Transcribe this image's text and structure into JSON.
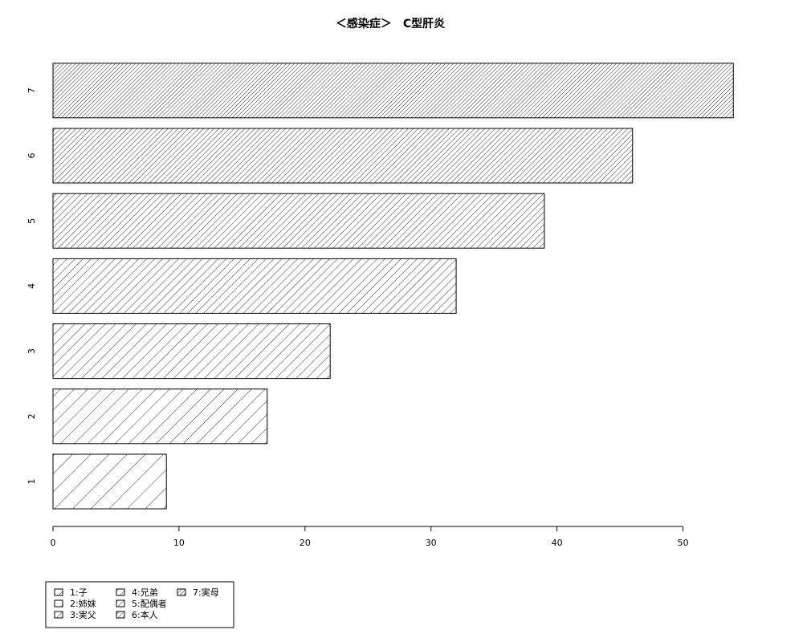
{
  "chart_data": {
    "type": "bar",
    "orientation": "horizontal",
    "title": "＜感染症＞　C型肝炎",
    "xlabel": "",
    "ylabel": "",
    "categories": [
      "1",
      "2",
      "3",
      "4",
      "5",
      "6",
      "7"
    ],
    "values": [
      9,
      17,
      22,
      32,
      39,
      46,
      54
    ],
    "xlim": [
      0,
      54
    ],
    "xticks": [
      "0",
      "10",
      "20",
      "30",
      "40",
      "50"
    ],
    "grid": false,
    "fill": "diagonal-hatch, density increasing with category",
    "legend": {
      "placement": "bottom-left",
      "entries": [
        "1:子",
        "2:姉妹",
        "3:実父",
        "4:兄弟",
        "5:配偶者",
        "6:本人",
        "7:実母"
      ]
    }
  }
}
